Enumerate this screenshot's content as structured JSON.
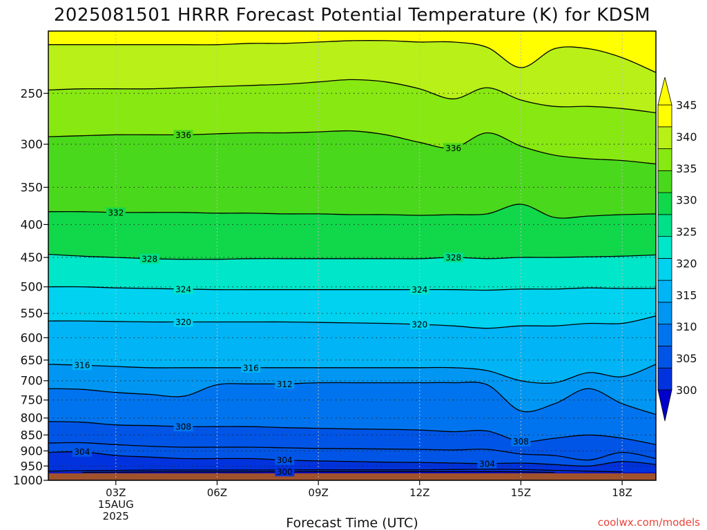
{
  "chart_data": {
    "type": "contour",
    "title": "2025081501 HRRR Forecast Potential Temperature (K) for KDSM",
    "xlabel": "Forecast Time (UTC)",
    "ylabel": "",
    "credit": "coolwx.com/models",
    "x_hours": [
      1,
      2,
      3,
      4,
      5,
      6,
      7,
      8,
      9,
      10,
      11,
      12,
      13,
      14,
      15,
      16,
      17,
      18,
      19
    ],
    "x_range_hours": [
      1,
      19
    ],
    "x_ticks": [
      {
        "hour": 3,
        "label": "03Z",
        "sublabels": [
          "15AUG",
          "2025"
        ]
      },
      {
        "hour": 6,
        "label": "06Z"
      },
      {
        "hour": 9,
        "label": "09Z"
      },
      {
        "hour": 12,
        "label": "12Z"
      },
      {
        "hour": 15,
        "label": "15Z"
      },
      {
        "hour": 18,
        "label": "18Z"
      }
    ],
    "y_axis": "pressure (hPa), log scale",
    "y_range_hpa": [
      200,
      1000
    ],
    "y_ticks": [
      250,
      300,
      350,
      400,
      450,
      500,
      550,
      600,
      650,
      700,
      750,
      800,
      850,
      900,
      950,
      1000
    ],
    "y_tick_labels": [
      "250",
      "300",
      "350",
      "400",
      "450",
      "500",
      "550",
      "600",
      "650",
      "700",
      "750",
      "800",
      "850",
      "900",
      "950",
      "1000"
    ],
    "ground_pressure_hpa": 975,
    "ground_color": "#a0522d",
    "colorbar": {
      "levels": [
        300,
        305,
        310,
        315,
        320,
        325,
        330,
        335,
        340,
        345
      ],
      "labels": [
        "300",
        "305",
        "310",
        "315",
        "320",
        "325",
        "330",
        "335",
        "340",
        "345"
      ],
      "colors": [
        "#0033dd",
        "#0055e6",
        "#0074ee",
        "#0096f2",
        "#00b4f5",
        "#00d2f0",
        "#00e6c8",
        "#00e08a",
        "#10d84a",
        "#4ad81c",
        "#88e812",
        "#b8f018",
        "#ffff00"
      ],
      "under_color": "#0000cc",
      "over_color": "#ffff00"
    },
    "contours": [
      {
        "value": 300,
        "labels": [
          {
            "text": "300",
            "hour": 8
          }
        ],
        "pressure_hpa": [
          null,
          972,
          971,
          970,
          970,
          970,
          970,
          969,
          969,
          969,
          969,
          969,
          969,
          969,
          970,
          972,
          null,
          null,
          null
        ]
      },
      {
        "value": 302,
        "pressure_hpa": [
          968,
          966,
          965,
          964,
          964,
          964,
          964,
          963,
          963,
          963,
          963,
          963,
          962,
          961,
          962,
          965,
          968,
          970,
          null
        ]
      },
      {
        "value": 304,
        "labels": [
          {
            "text": "304",
            "hour": 2
          },
          {
            "text": "304",
            "hour": 8
          },
          {
            "text": "304",
            "hour": 14
          }
        ],
        "pressure_hpa": [
          905,
          903,
          915,
          920,
          925,
          925,
          925,
          930,
          933,
          935,
          937,
          938,
          940,
          942,
          940,
          945,
          950,
          935,
          945
        ]
      },
      {
        "value": 306,
        "pressure_hpa": [
          875,
          874,
          880,
          885,
          888,
          888,
          888,
          890,
          892,
          893,
          894,
          895,
          897,
          895,
          910,
          915,
          930,
          905,
          925
        ]
      },
      {
        "value": 308,
        "labels": [
          {
            "text": "308",
            "hour": 5
          },
          {
            "text": "308",
            "hour": 15
          }
        ],
        "pressure_hpa": [
          810,
          812,
          820,
          822,
          825,
          825,
          825,
          828,
          830,
          832,
          833,
          835,
          840,
          838,
          870,
          860,
          850,
          860,
          880
        ]
      },
      {
        "value": 312,
        "labels": [
          {
            "text": "312",
            "hour": 8
          }
        ],
        "pressure_hpa": [
          720,
          722,
          730,
          735,
          740,
          710,
          708,
          708,
          705,
          705,
          705,
          705,
          705,
          710,
          780,
          760,
          720,
          760,
          790
        ]
      },
      {
        "value": 316,
        "labels": [
          {
            "text": "316",
            "hour": 2
          },
          {
            "text": "316",
            "hour": 7
          }
        ],
        "pressure_hpa": [
          660,
          662,
          665,
          668,
          668,
          668,
          668,
          668,
          668,
          668,
          668,
          668,
          668,
          675,
          700,
          705,
          680,
          690,
          660
        ]
      },
      {
        "value": 320,
        "labels": [
          {
            "text": "320",
            "hour": 5
          },
          {
            "text": "320",
            "hour": 12
          }
        ],
        "pressure_hpa": [
          565,
          565,
          566,
          567,
          567,
          567,
          567,
          567,
          568,
          569,
          570,
          572,
          575,
          580,
          575,
          575,
          570,
          570,
          555
        ]
      },
      {
        "value": 324,
        "labels": [
          {
            "text": "324",
            "hour": 5
          },
          {
            "text": "324",
            "hour": 12
          }
        ],
        "pressure_hpa": [
          500,
          500,
          502,
          503,
          504,
          505,
          505,
          505,
          505,
          505,
          505,
          505,
          505,
          506,
          504,
          504,
          502,
          503,
          503
        ]
      },
      {
        "value": 328,
        "labels": [
          {
            "text": "328",
            "hour": 4
          },
          {
            "text": "328",
            "hour": 13
          }
        ],
        "pressure_hpa": [
          445,
          448,
          450,
          452,
          453,
          453,
          452,
          452,
          452,
          452,
          452,
          452,
          450,
          452,
          450,
          450,
          449,
          448,
          446
        ]
      },
      {
        "value": 332,
        "labels": [
          {
            "text": "332",
            "hour": 3
          }
        ],
        "pressure_hpa": [
          382,
          382,
          383,
          383,
          383,
          384,
          384,
          385,
          385,
          386,
          386,
          387,
          386,
          385,
          372,
          390,
          388,
          386,
          385
        ]
      },
      {
        "value": 336,
        "labels": [
          {
            "text": "336",
            "hour": 5
          },
          {
            "text": "336",
            "hour": 13
          }
        ],
        "pressure_hpa": [
          292,
          291,
          290,
          290,
          290,
          289,
          288,
          288,
          287,
          286,
          290,
          298,
          304,
          288,
          302,
          312,
          316,
          318,
          322
        ]
      },
      {
        "value": 340,
        "pressure_hpa": [
          247,
          246,
          246,
          246,
          245,
          244,
          243,
          242,
          240,
          238,
          240,
          246,
          255,
          245,
          256,
          262,
          262,
          264,
          268
        ]
      },
      {
        "value": 344,
        "pressure_hpa": [
          210,
          210,
          210,
          210,
          210,
          210,
          209,
          209,
          208,
          207,
          207,
          208,
          208,
          212,
          228,
          213,
          213,
          220,
          232
        ]
      }
    ]
  }
}
